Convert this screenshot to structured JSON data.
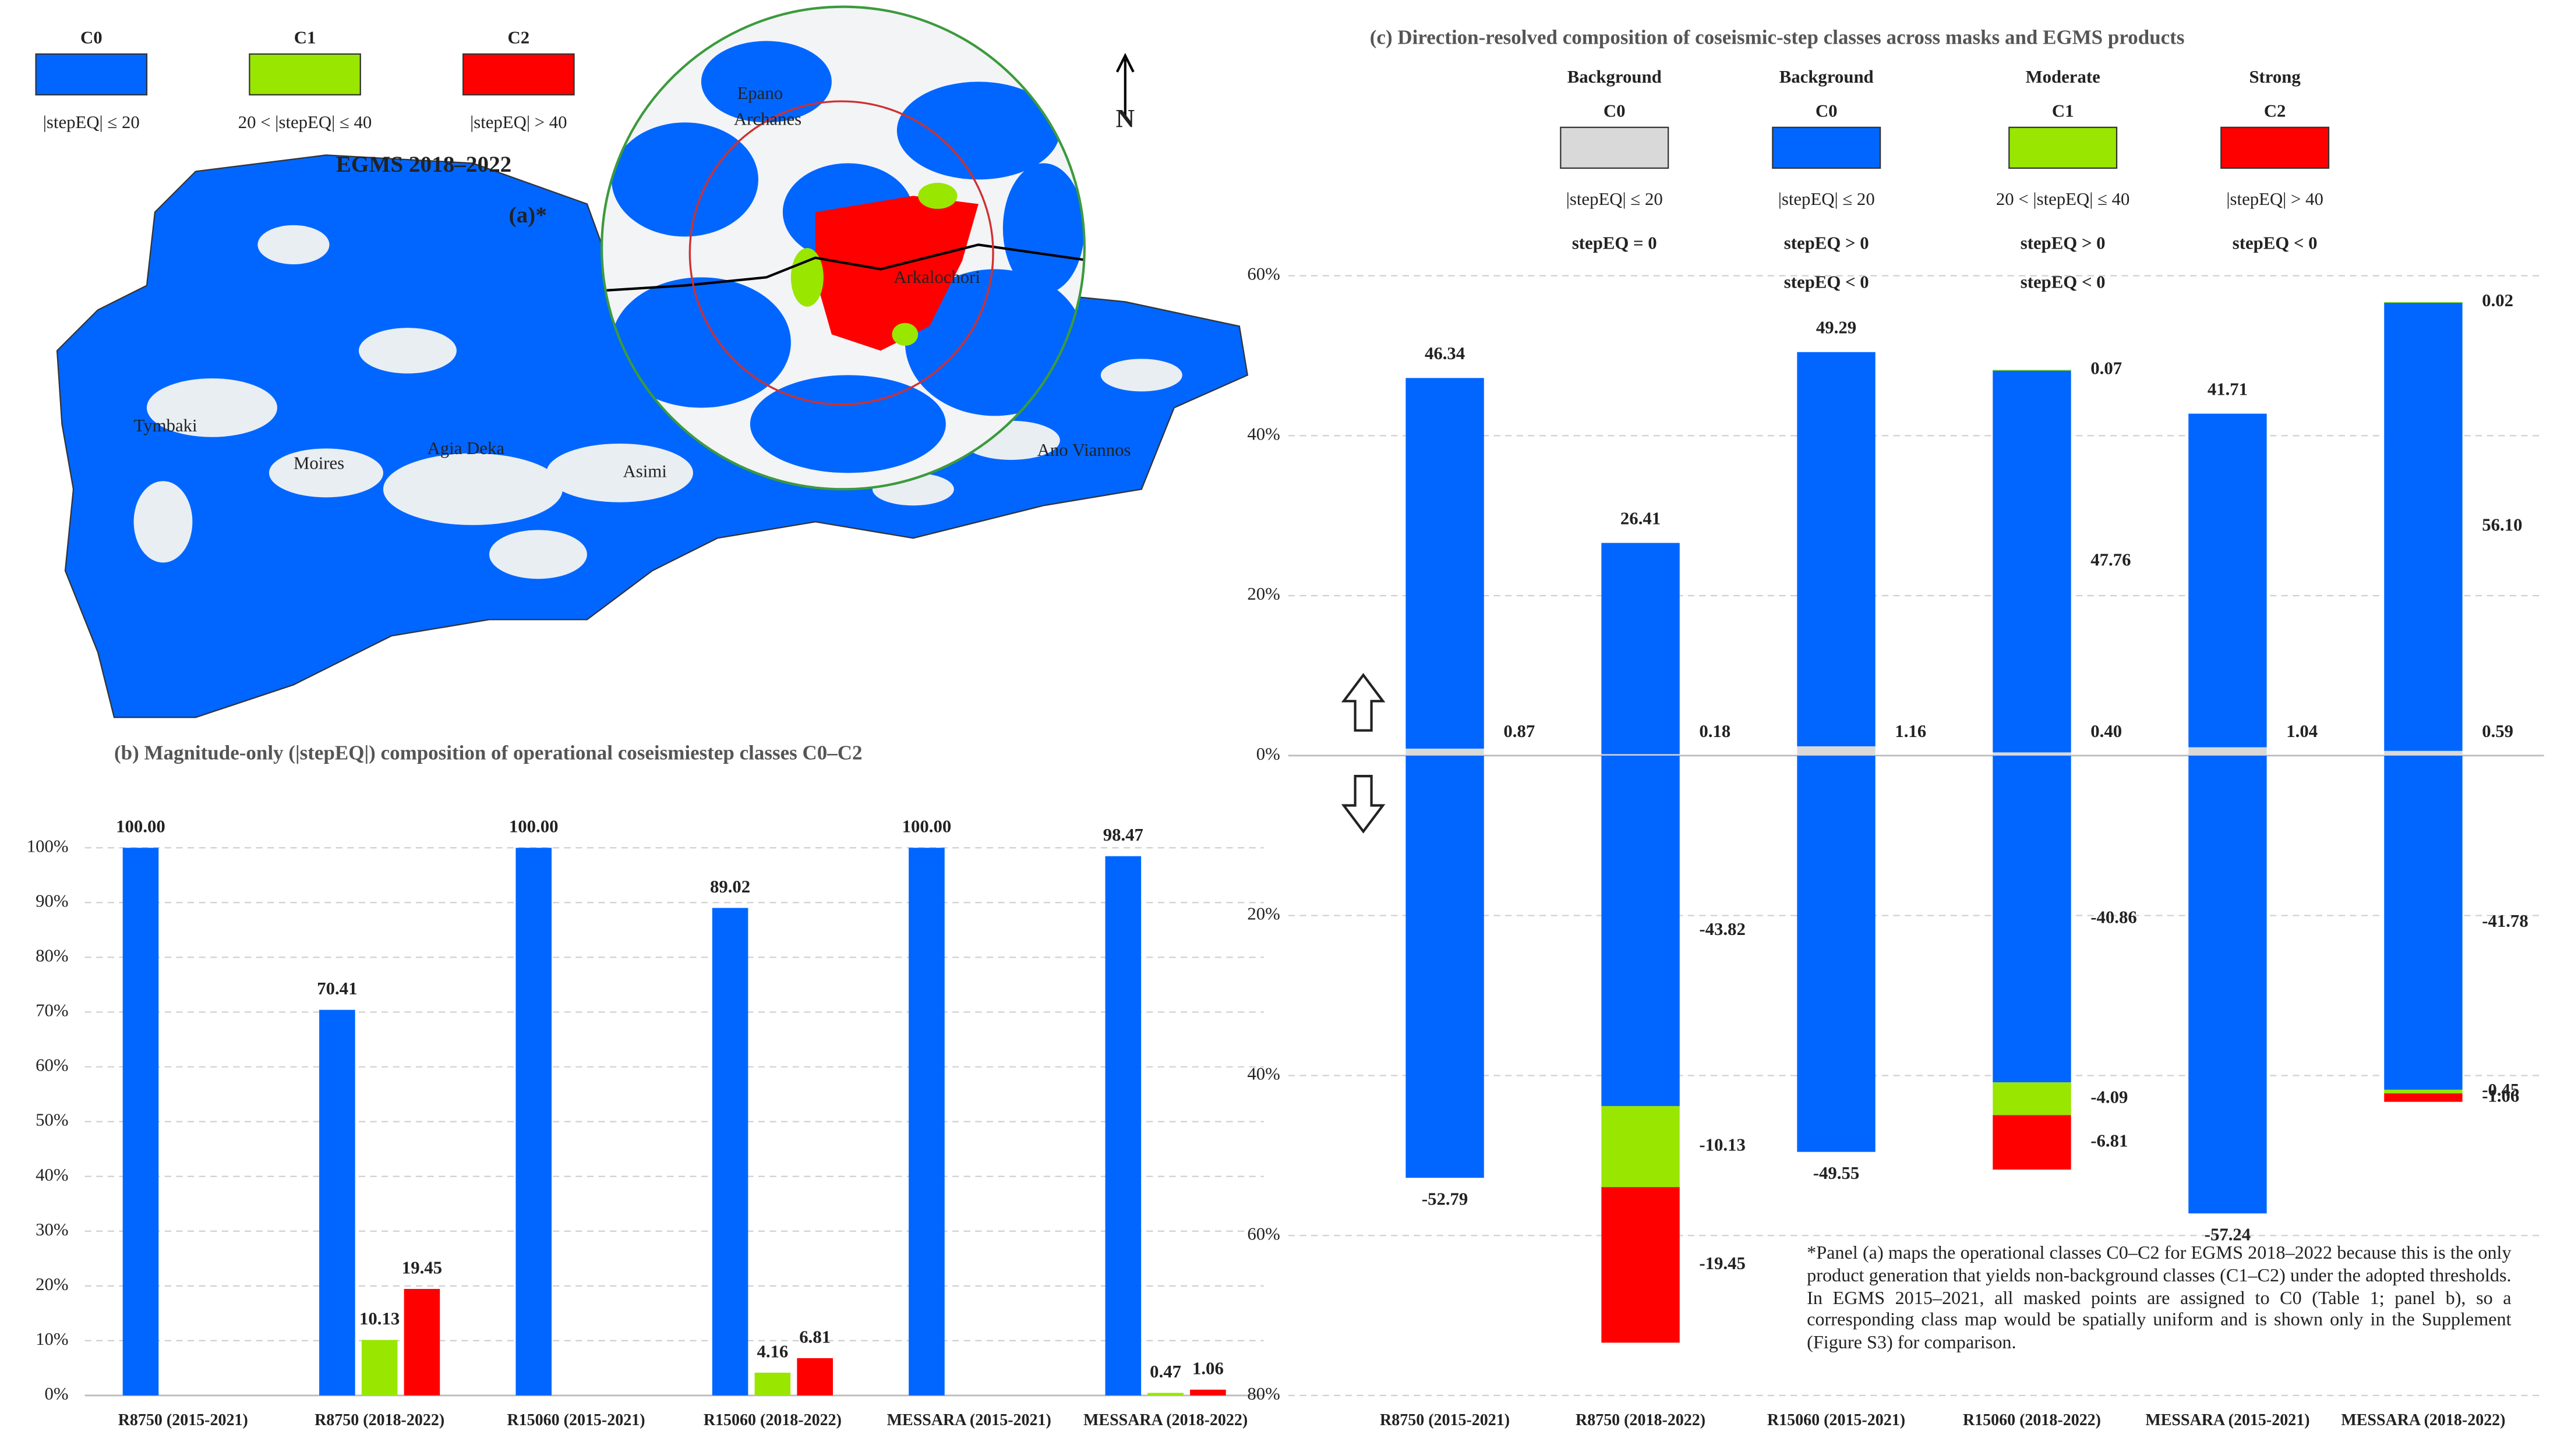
{
  "map_panel": {
    "title": "EGMS 2018–2022",
    "label": "(a)*",
    "north": "N",
    "places": [
      "Epano",
      "Archanes",
      "Arkalochori",
      "Tymbaki",
      "Moires",
      "Agia Deka",
      "Asimi",
      "Ano Viannos"
    ]
  },
  "chart_data": [
    {
      "type": "bar",
      "title": "(b) Magnitude-only (|stepEQ|) composition of operational coseismiestep classes C0–C2",
      "categories": [
        "R8750 (2015-2021)",
        "R8750 (2018-2022)",
        "R15060 (2015-2021)",
        "R15060 (2018-2022)",
        "MESSARA (2015-2021)",
        "MESSARA (2018-2022)"
      ],
      "series": [
        {
          "name": "C0",
          "description": "|stepEQ| ≤ 20",
          "color": "#0066ff",
          "values": [
            100,
            70.41,
            100,
            89.02,
            100,
            98.47
          ],
          "value_labels": [
            "100.00",
            "70.41",
            "100.00",
            "89.02",
            "100.00",
            "98.47"
          ]
        },
        {
          "name": "C1",
          "description": "20 < |stepEQ| ≤ 40",
          "color": "#99e600",
          "values": [
            null,
            10.13,
            null,
            4.16,
            null,
            0.47
          ],
          "value_labels": [
            null,
            "10.13",
            null,
            "4.16",
            null,
            "0.47"
          ]
        },
        {
          "name": "C2",
          "description": "|stepEQ| > 40",
          "color": "#ff0000",
          "values": [
            null,
            19.45,
            null,
            6.81,
            null,
            1.06
          ],
          "value_labels": [
            null,
            "19.45",
            null,
            "6.81",
            null,
            "1.06"
          ]
        }
      ],
      "ylim": [
        0,
        100
      ],
      "yticks": [
        {
          "value": 0,
          "label": "0%"
        },
        {
          "value": 10,
          "label": "10%"
        },
        {
          "value": 20,
          "label": "20%"
        },
        {
          "value": 30,
          "label": "30%"
        },
        {
          "value": 40,
          "label": "40%"
        },
        {
          "value": 50,
          "label": "50%"
        },
        {
          "value": 60,
          "label": "60%"
        },
        {
          "value": 70,
          "label": "70%"
        },
        {
          "value": 80,
          "label": "80%"
        },
        {
          "value": 90,
          "label": "90%"
        },
        {
          "value": 100,
          "label": "100%"
        }
      ],
      "grid": true
    },
    {
      "type": "diverging_stacked_bar",
      "title": "(c) Direction-resolved composition of coseismic-step classes across masks and EGMS products",
      "categories": [
        "R8750 (2015-2021)",
        "R8750 (2018-2022)",
        "R15060 (2015-2021)",
        "R15060 (2018-2022)",
        "MESSARA (2015-2021)",
        "MESSARA (2018-2022)"
      ],
      "legend": [
        {
          "group": "Background",
          "name": "C0",
          "color": "#d9d9d9",
          "description": "|stepEQ| ≤ 20",
          "signs": [
            "stepEQ = 0"
          ]
        },
        {
          "group": "Background",
          "name": "C0",
          "color": "#0066ff",
          "description": "|stepEQ| ≤ 20",
          "signs": [
            "stepEQ > 0",
            "stepEQ < 0"
          ]
        },
        {
          "group": "Moderate",
          "name": "C1",
          "color": "#99e600",
          "description": "20 < |stepEQ| ≤ 40",
          "signs": [
            "stepEQ > 0",
            "stepEQ < 0"
          ]
        },
        {
          "group": "Strong",
          "name": "C2",
          "color": "#ff0000",
          "description": "|stepEQ| > 40",
          "signs": [
            "stepEQ < 0"
          ]
        }
      ],
      "series": [
        {
          "legend": 0,
          "values": [
            0.87,
            0.18,
            1.16,
            0.4,
            1.04,
            0.59
          ],
          "value_labels": [
            "0.87",
            "0.18",
            "1.16",
            "0.40",
            "1.04",
            "0.59"
          ]
        },
        {
          "legend": 1,
          "values": [
            46.34,
            26.41,
            49.29,
            47.76,
            41.71,
            56.1
          ],
          "value_labels": [
            "46.34",
            "26.41",
            "49.29",
            "47.76",
            "41.71",
            "56.10"
          ]
        },
        {
          "legend": 2,
          "values": [
            null,
            null,
            null,
            0.07,
            null,
            0.02
          ],
          "value_labels": [
            null,
            null,
            null,
            "0.07",
            null,
            "0.02"
          ]
        },
        {
          "legend": 1,
          "values": [
            -52.79,
            -43.82,
            -49.55,
            -40.86,
            -57.24,
            -41.78
          ],
          "value_labels": [
            "-52.79",
            "-43.82",
            "-49.55",
            "-40.86",
            "-57.24",
            "-41.78"
          ]
        },
        {
          "legend": 2,
          "values": [
            null,
            -10.13,
            null,
            -4.09,
            null,
            -0.45
          ],
          "value_labels": [
            null,
            "-10.13",
            null,
            "-4.09",
            null,
            "-0.45"
          ]
        },
        {
          "legend": 3,
          "values": [
            null,
            -19.45,
            null,
            -6.81,
            null,
            -1.06
          ],
          "value_labels": [
            null,
            "-19.45",
            null,
            "-6.81",
            null,
            "-1.06"
          ]
        }
      ],
      "ylim": [
        -80,
        60
      ],
      "yticks": [
        {
          "value": 60,
          "label": "60%"
        },
        {
          "value": 40,
          "label": "40%"
        },
        {
          "value": 20,
          "label": "20%"
        },
        {
          "value": 0,
          "label": "0%"
        },
        {
          "value": -20,
          "label": "20%"
        },
        {
          "value": -40,
          "label": "40%"
        },
        {
          "value": -60,
          "label": "60%"
        },
        {
          "value": -80,
          "label": "80%"
        }
      ],
      "grid": true,
      "note": "*Panel (a) maps the operational classes C0–C2 for EGMS 2018–2022 because this is the only product generation that yields non-background classes (C1–C2) under the adopted thresholds. In EGMS 2015–2021, all masked points are assigned to C0 (Table 1; panel b), so a corresponding class map would be spatially uniform and is shown only in the Supplement (Figure S3) for comparison."
    }
  ]
}
